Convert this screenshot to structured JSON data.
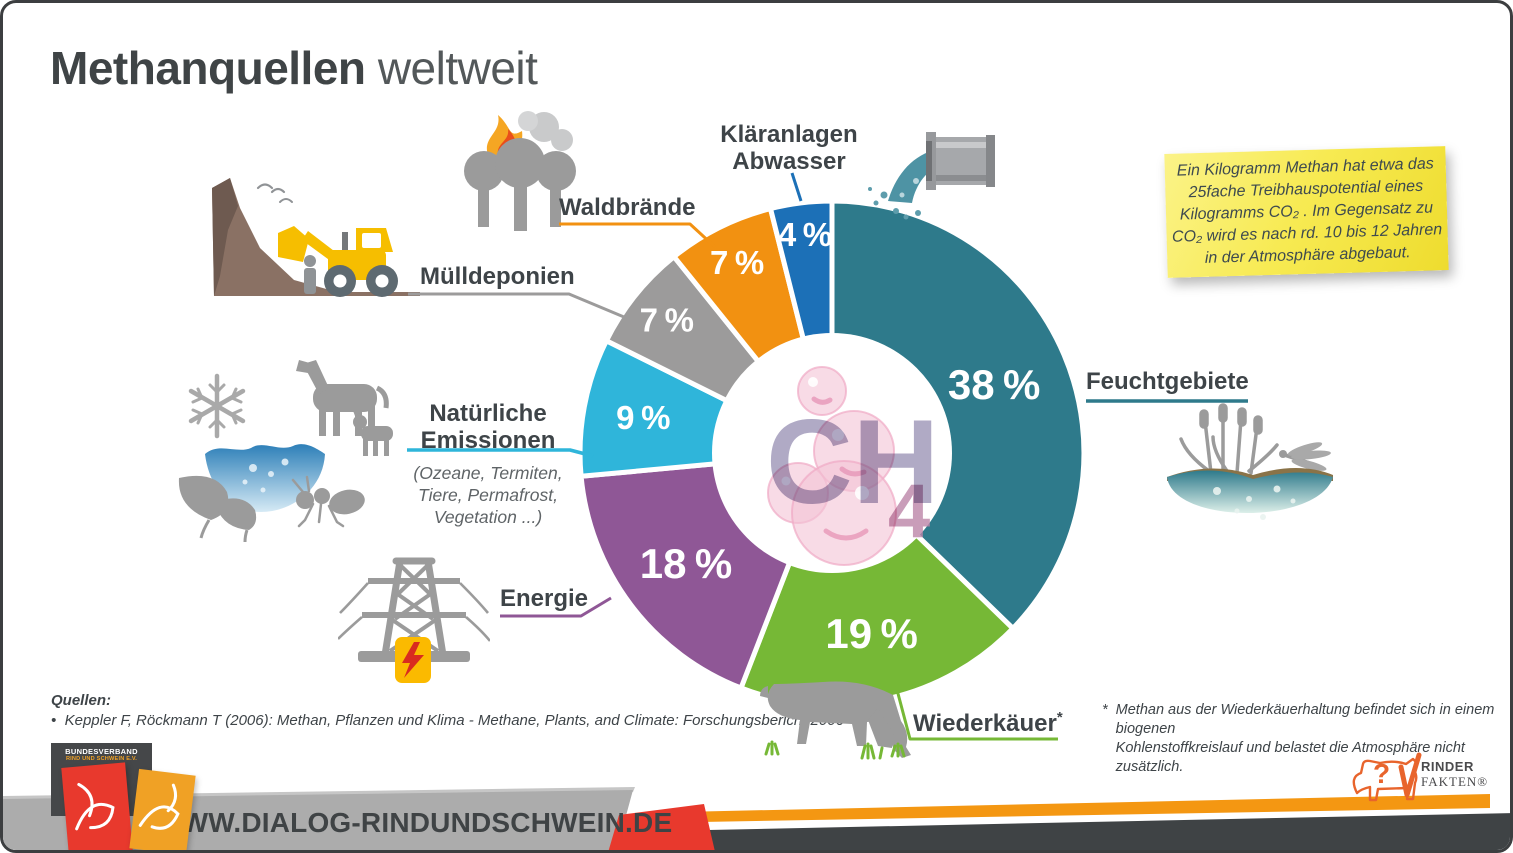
{
  "title": {
    "bold": "Methanquellen",
    "light": "weltweit"
  },
  "sticky_note": {
    "lines": [
      "Ein Kilogramm Methan hat etwa das",
      "25fache Treibhauspotential eines",
      "Kilogramms CO₂ . Im Gegensatz zu",
      "CO₂ wird es nach rd. 10 bis 12 Jahren",
      "in der Atmosphäre abgebaut."
    ]
  },
  "chart_data": {
    "type": "pie",
    "variant": "donut",
    "title": "Methanquellen weltweit",
    "unit": "%",
    "direction": "clockwise",
    "start": "top",
    "center_label": {
      "main": "CH",
      "sub": "4"
    },
    "segments": [
      {
        "label": "Feuchtgebiete",
        "value": 38,
        "color": "#2E7A8B",
        "label_r": 176
      },
      {
        "label": "Wiederkäuer",
        "value": 19,
        "color": "#76B836",
        "label_r": 185
      },
      {
        "label": "Energie",
        "value": 18,
        "color": "#8F5796",
        "label_r": 183
      },
      {
        "label": "Natürliche Emissionen",
        "value": 9,
        "color": "#2FB5DA",
        "label_r": 192
      },
      {
        "label": "Mülldeponien",
        "value": 7,
        "color": "#9C9B9B",
        "label_r": 212
      },
      {
        "label": "Waldbrände",
        "value": 7,
        "color": "#F29111",
        "label_r": 213
      },
      {
        "label": "Kläranlagen Abwasser",
        "value": 4,
        "color": "#1C70B7",
        "label_r": 220
      }
    ]
  },
  "callouts": {
    "klaeranlagen": {
      "line1": "Kläranlagen",
      "line2": "Abwasser"
    },
    "natuerliche": {
      "line1": "Natürliche",
      "line2": "Emissionen",
      "sub": [
        "(Ozeane, Termiten,",
        "Tiere, Permafrost,",
        "Vegetation ...)"
      ]
    }
  },
  "sources": {
    "heading": "Quellen:",
    "bullet": "•",
    "items": [
      "Keppler F, Röckmann T (2006): Methan, Pflanzen und Klima - Methane, Plants, and Climate: Forschungsbericht 2006"
    ]
  },
  "footnote": {
    "marker": "*",
    "lines": [
      "Methan aus der Wiederkäuerhaltung befindet sich in einem biogenen",
      "Kohlenstoffkreislauf und belastet die Atmosphäre nicht zusätzlich."
    ]
  },
  "footer": {
    "url": "WWW.DIALOG-RINDUNDSCHWEIN.DE",
    "association": {
      "line1": "BUNDESVERBAND",
      "line2": "RIND UND SCHWEIN E.V."
    },
    "rinderfakten": {
      "line1": "RINDER",
      "line2": "FAKTEN®"
    }
  },
  "colors": {
    "teal": "#2E7A8B",
    "green": "#76B836",
    "purple": "#8F5796",
    "cyan": "#2FB5DA",
    "gray": "#9C9B9B",
    "orange": "#F29111",
    "blue": "#1C70B7",
    "accent_red": "#E8392D",
    "accent_orange": "#F0A125",
    "banner_gray": "#ACACAC",
    "dark_text": "#3F4446",
    "note_yellow": "#F5E547"
  }
}
